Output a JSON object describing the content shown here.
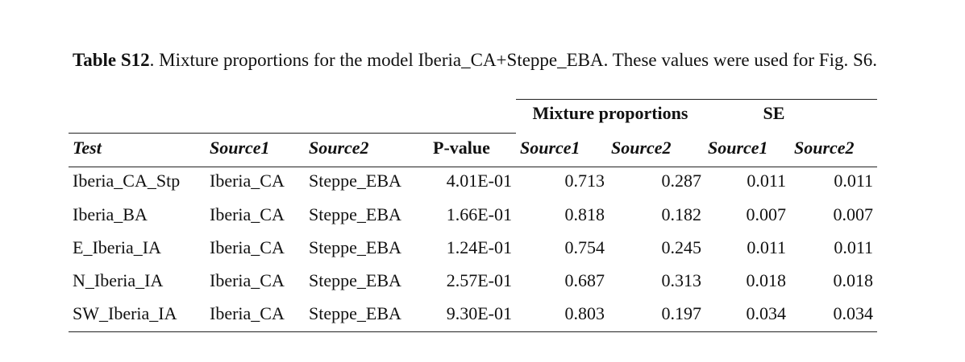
{
  "caption": {
    "label": "Table S12",
    "text": ". Mixture proportions for the model Iberia_CA+Steppe_EBA. These values were used for Fig. S6."
  },
  "table": {
    "group_headers": [
      "Mixture proportions",
      "SE"
    ],
    "columns": [
      "Test",
      "Source1",
      "Source2",
      "P-value",
      "Source1",
      "Source2",
      "Source1",
      "Source2"
    ],
    "rows": [
      [
        "Iberia_CA_Stp",
        "Iberia_CA",
        "Steppe_EBA",
        "4.01E-01",
        "0.713",
        "0.287",
        "0.011",
        "0.011"
      ],
      [
        "Iberia_BA",
        "Iberia_CA",
        "Steppe_EBA",
        "1.66E-01",
        "0.818",
        "0.182",
        "0.007",
        "0.007"
      ],
      [
        "E_Iberia_IA",
        "Iberia_CA",
        "Steppe_EBA",
        "1.24E-01",
        "0.754",
        "0.245",
        "0.011",
        "0.011"
      ],
      [
        "N_Iberia_IA",
        "Iberia_CA",
        "Steppe_EBA",
        "2.57E-01",
        "0.687",
        "0.313",
        "0.018",
        "0.018"
      ],
      [
        "SW_Iberia_IA",
        "Iberia_CA",
        "Steppe_EBA",
        "9.30E-01",
        "0.803",
        "0.197",
        "0.034",
        "0.034"
      ]
    ]
  }
}
